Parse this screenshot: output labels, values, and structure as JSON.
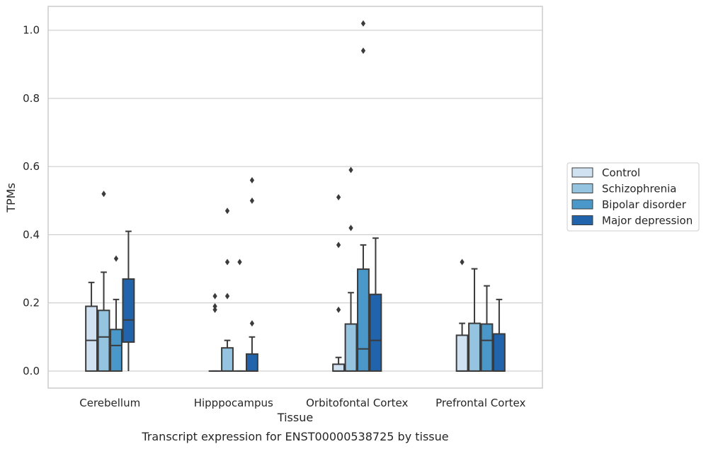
{
  "chart_data": {
    "type": "boxplot",
    "xlabel": "Tissue",
    "ylabel": "TPMs",
    "caption": "Transcript expression for ENST00000538725 by tissue",
    "ylim": [
      -0.05,
      1.07
    ],
    "yticks": [
      0.0,
      0.2,
      0.4,
      0.6,
      0.8,
      1.0
    ],
    "ytick_labels": [
      "0.0",
      "0.2",
      "0.4",
      "0.6",
      "0.8",
      "1.0"
    ],
    "grid": "horizontal",
    "legend_position": "right",
    "categories": [
      "Cerebellum",
      "Hipppocampus",
      "Orbitofontal Cortex",
      "Prefrontal Cortex"
    ],
    "series": [
      {
        "name": "Control",
        "color": "#d0e1f2",
        "boxes": [
          {
            "whislo": 0.0,
            "q1": 0.0,
            "med": 0.09,
            "q3": 0.19,
            "whishi": 0.26,
            "fliers": []
          },
          {
            "whislo": 0.0,
            "q1": 0.0,
            "med": 0.0,
            "q3": 0.0,
            "whishi": 0.0,
            "fliers": [
              0.18,
              0.19,
              0.22
            ]
          },
          {
            "whislo": 0.0,
            "q1": 0.0,
            "med": 0.0,
            "q3": 0.02,
            "whishi": 0.04,
            "fliers": [
              0.18,
              0.37,
              0.51
            ]
          },
          {
            "whislo": 0.0,
            "q1": 0.0,
            "med": 0.0,
            "q3": 0.105,
            "whishi": 0.14,
            "fliers": [
              0.32
            ]
          }
        ]
      },
      {
        "name": "Schizophrenia",
        "color": "#94c4df",
        "boxes": [
          {
            "whislo": 0.0,
            "q1": 0.0,
            "med": 0.1,
            "q3": 0.178,
            "whishi": 0.29,
            "fliers": [
              0.52
            ]
          },
          {
            "whislo": 0.0,
            "q1": 0.0,
            "med": 0.0,
            "q3": 0.068,
            "whishi": 0.09,
            "fliers": [
              0.22,
              0.32,
              0.47
            ]
          },
          {
            "whislo": 0.0,
            "q1": 0.0,
            "med": 0.0,
            "q3": 0.138,
            "whishi": 0.23,
            "fliers": [
              0.42,
              0.59
            ]
          },
          {
            "whislo": 0.0,
            "q1": 0.0,
            "med": 0.0,
            "q3": 0.14,
            "whishi": 0.3,
            "fliers": []
          }
        ]
      },
      {
        "name": "Bipolar disorder",
        "color": "#4a98c9",
        "boxes": [
          {
            "whislo": 0.0,
            "q1": 0.0,
            "med": 0.075,
            "q3": 0.122,
            "whishi": 0.21,
            "fliers": [
              0.33
            ]
          },
          {
            "whislo": 0.0,
            "q1": 0.0,
            "med": 0.0,
            "q3": 0.0,
            "whishi": 0.0,
            "fliers": [
              0.32
            ]
          },
          {
            "whislo": 0.0,
            "q1": 0.0,
            "med": 0.065,
            "q3": 0.299,
            "whishi": 0.37,
            "fliers": [
              0.94,
              1.02
            ]
          },
          {
            "whislo": 0.0,
            "q1": 0.0,
            "med": 0.09,
            "q3": 0.138,
            "whishi": 0.25,
            "fliers": []
          }
        ]
      },
      {
        "name": "Major depression",
        "color": "#2164ab",
        "boxes": [
          {
            "whislo": 0.0,
            "q1": 0.085,
            "med": 0.15,
            "q3": 0.27,
            "whishi": 0.41,
            "fliers": []
          },
          {
            "whislo": 0.0,
            "q1": 0.0,
            "med": 0.0,
            "q3": 0.05,
            "whishi": 0.1,
            "fliers": [
              0.14,
              0.5,
              0.56
            ]
          },
          {
            "whislo": 0.0,
            "q1": 0.0,
            "med": 0.09,
            "q3": 0.225,
            "whishi": 0.39,
            "fliers": []
          },
          {
            "whislo": 0.0,
            "q1": 0.0,
            "med": 0.0,
            "q3": 0.109,
            "whishi": 0.21,
            "fliers": []
          }
        ]
      }
    ]
  }
}
